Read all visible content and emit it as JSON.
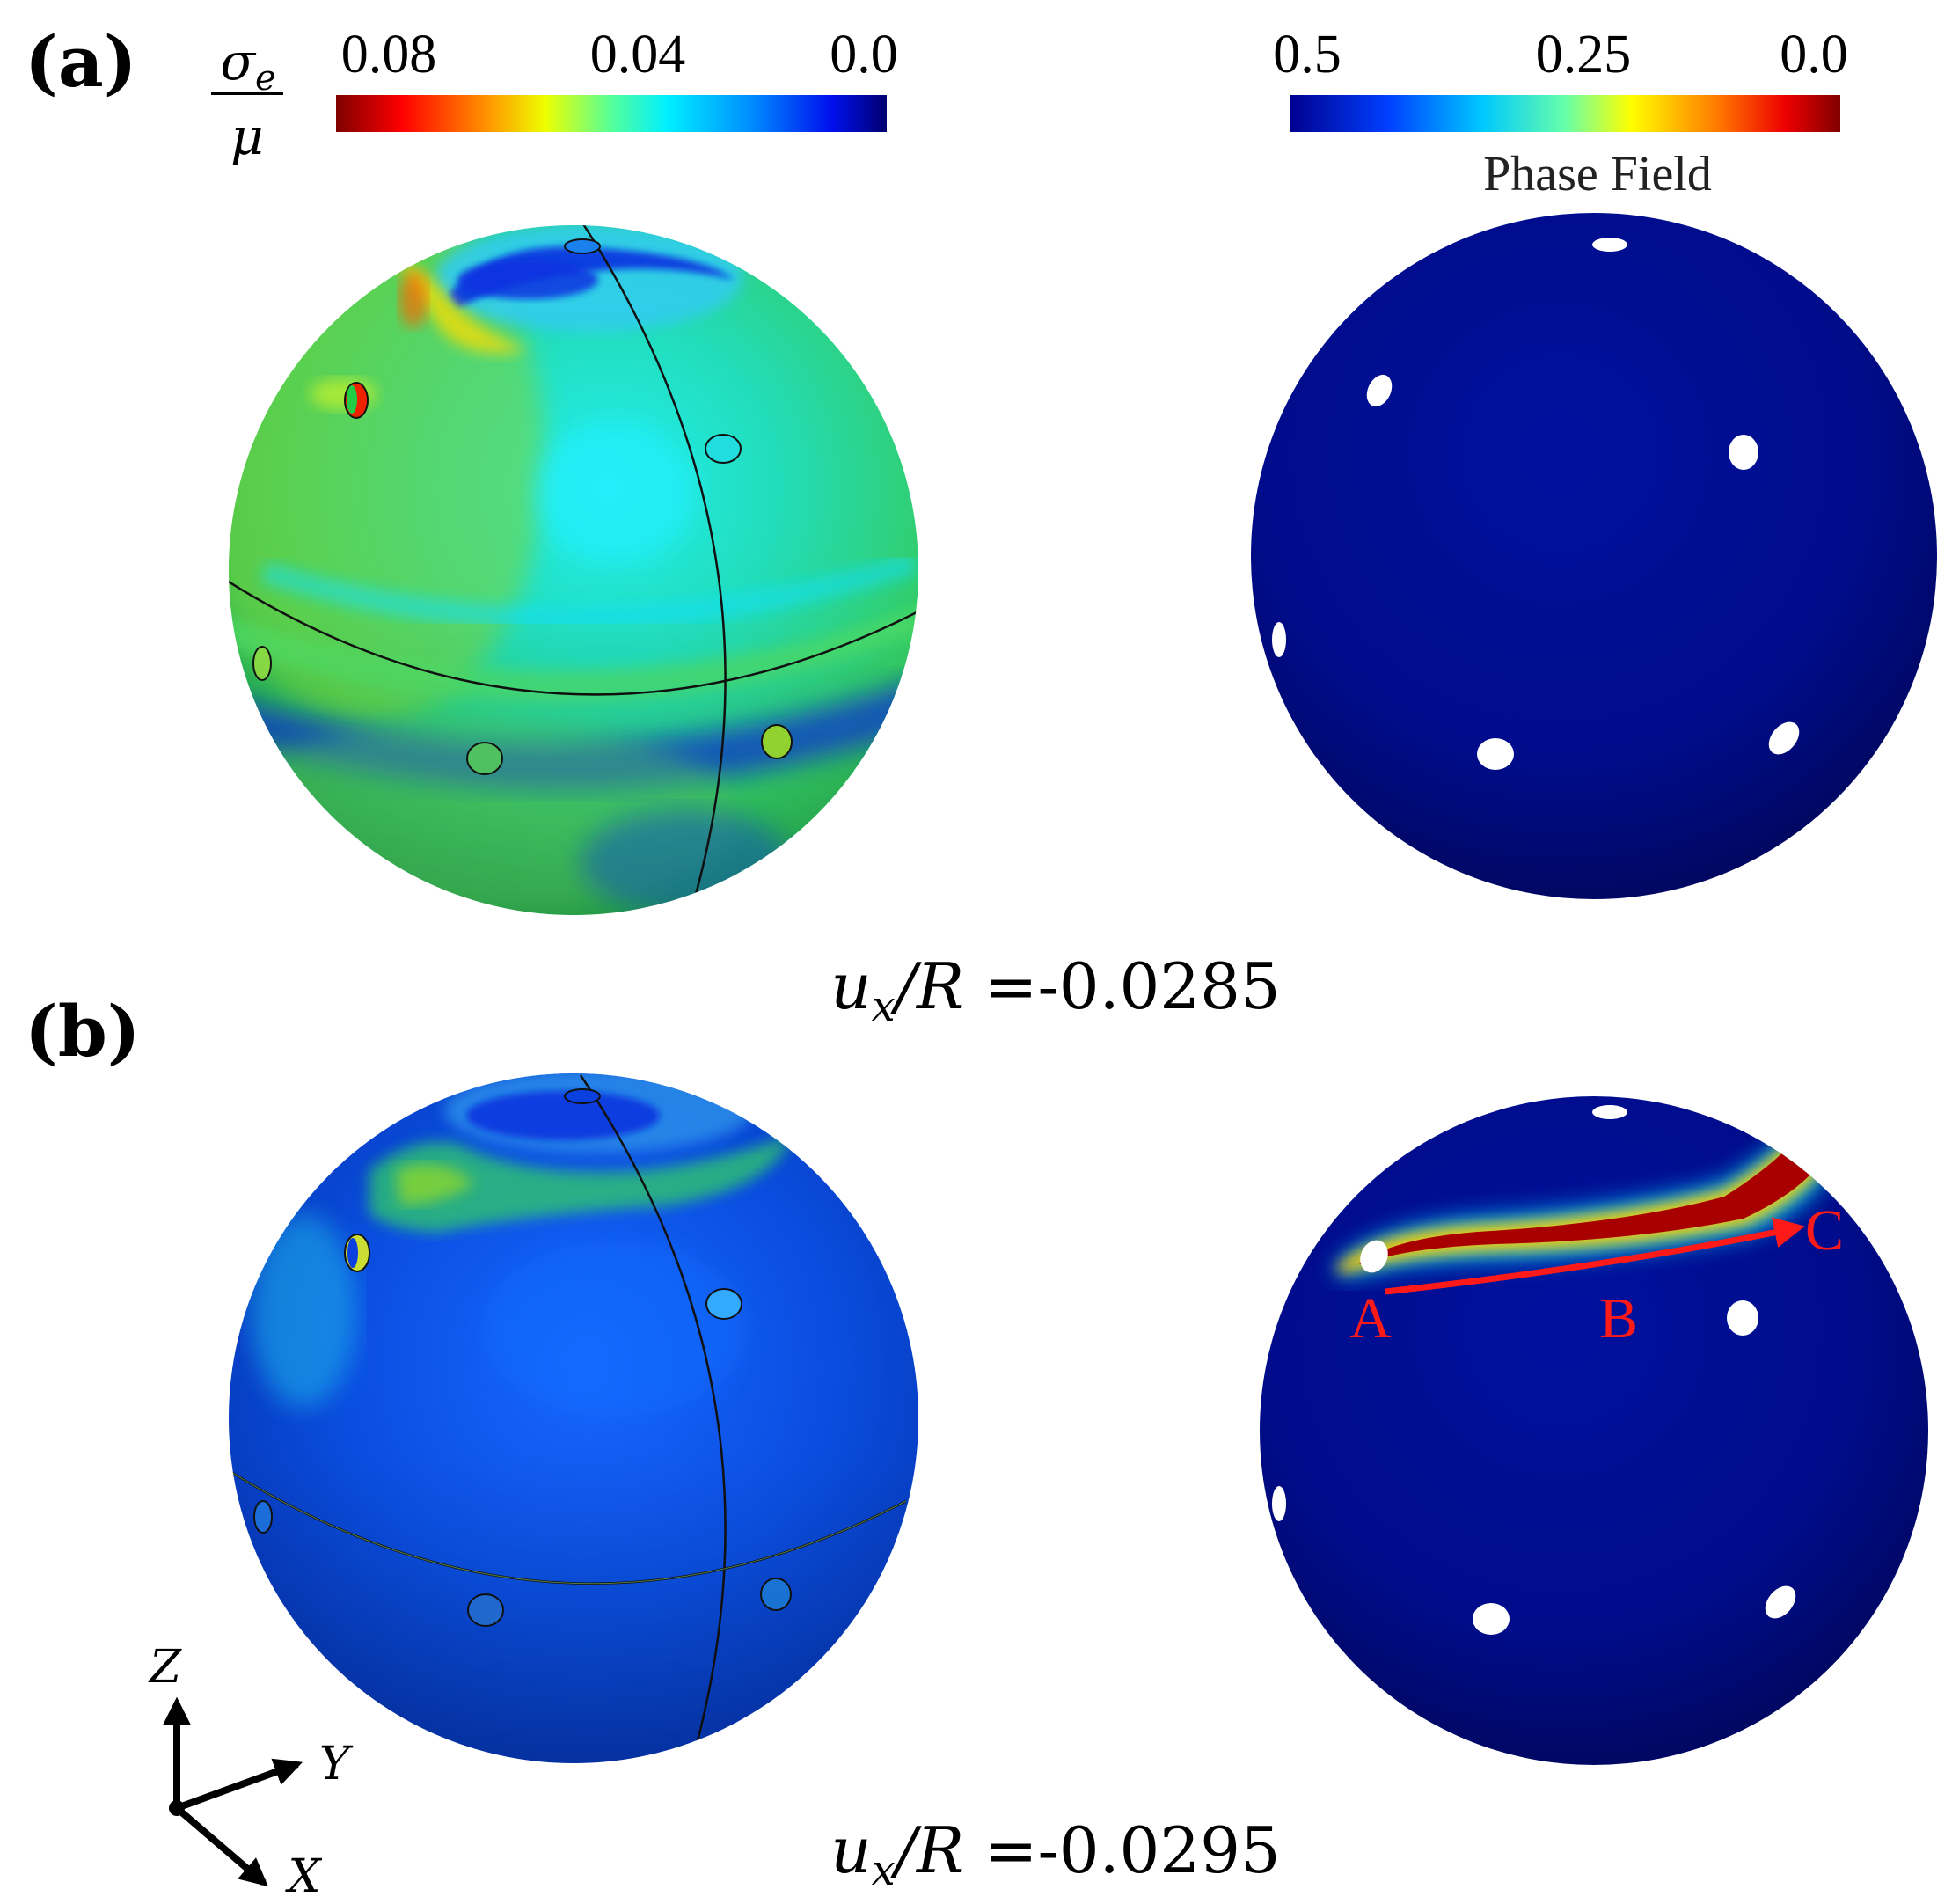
{
  "panels": {
    "a": {
      "label": "(a)",
      "displacement": {
        "prefix": "u",
        "sub": "x",
        "mid": "/R =",
        "value": "-0.0285"
      }
    },
    "b": {
      "label": "(b)",
      "displacement": {
        "prefix": "u",
        "sub": "x",
        "mid": "/R =",
        "value": "-0.0295"
      }
    }
  },
  "stress_colorbar": {
    "label_num": "σ",
    "label_sub": "e",
    "label_den": "μ",
    "ticks": [
      "0.08",
      "0.04",
      "0.0"
    ],
    "colors": [
      "#7f0000",
      "#ff0000",
      "#ff9900",
      "#eeff00",
      "#55ff99",
      "#00f0ff",
      "#0090ff",
      "#0010ee",
      "#000070"
    ]
  },
  "phase_colorbar": {
    "title": "Phase Field",
    "ticks": [
      "0.5",
      "0.25",
      "0.0"
    ],
    "colors": [
      "#00008f",
      "#0040ff",
      "#00c8ff",
      "#66ffaa",
      "#ffff00",
      "#ff7700",
      "#ee0000",
      "#800000"
    ]
  },
  "crack_path": {
    "points": [
      "A",
      "B",
      "C"
    ],
    "color": "#ff1a1a"
  },
  "axes": {
    "z": "Z",
    "y": "Y",
    "x": "X"
  }
}
